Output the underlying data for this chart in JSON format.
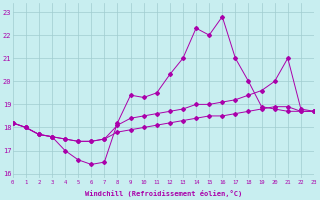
{
  "x": [
    0,
    1,
    2,
    3,
    4,
    5,
    6,
    7,
    8,
    9,
    10,
    11,
    12,
    13,
    14,
    15,
    16,
    17,
    18,
    19,
    20,
    21,
    22,
    23
  ],
  "line1": [
    18.2,
    18.0,
    17.7,
    17.6,
    17.0,
    16.6,
    16.4,
    16.5,
    18.2,
    19.4,
    19.3,
    19.5,
    20.3,
    21.0,
    22.3,
    22.0,
    22.8,
    21.0,
    20.0,
    18.9,
    18.8,
    18.7,
    18.7,
    18.7
  ],
  "line2": [
    18.2,
    18.0,
    17.7,
    17.6,
    17.5,
    17.4,
    17.4,
    17.5,
    18.1,
    18.4,
    18.5,
    18.6,
    18.7,
    18.8,
    19.0,
    19.0,
    19.1,
    19.2,
    19.4,
    19.6,
    20.0,
    21.0,
    18.8,
    18.7
  ],
  "line3": [
    18.2,
    18.0,
    17.7,
    17.6,
    17.5,
    17.4,
    17.4,
    17.5,
    17.8,
    17.9,
    18.0,
    18.1,
    18.2,
    18.3,
    18.4,
    18.5,
    18.5,
    18.6,
    18.7,
    18.8,
    18.9,
    18.9,
    18.7,
    18.7
  ],
  "line_color": "#aa00aa",
  "bg_color": "#c8eef0",
  "grid_color": "#a0ccd0",
  "xlabel": "Windchill (Refroidissement éolien,°C)",
  "ylabel_ticks": [
    16,
    17,
    18,
    19,
    20,
    21,
    22,
    23
  ],
  "xlim": [
    0,
    23
  ],
  "ylim": [
    15.8,
    23.4
  ],
  "xtick_labels": [
    "0",
    "1",
    "2",
    "3",
    "4",
    "5",
    "6",
    "7",
    "8",
    "9",
    "10",
    "11",
    "12",
    "13",
    "14",
    "15",
    "16",
    "17",
    "18",
    "19",
    "20",
    "21",
    "22",
    "23"
  ]
}
